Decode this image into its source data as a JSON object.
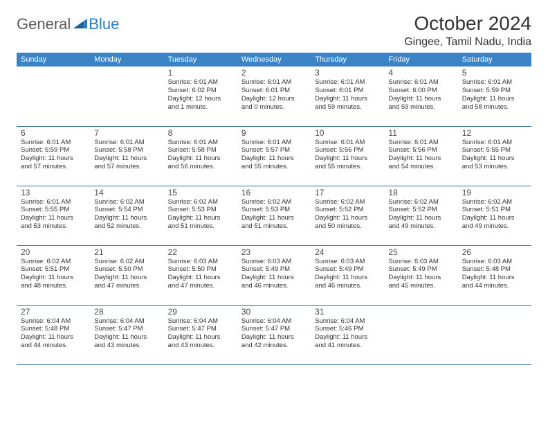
{
  "logo": {
    "part1": "General",
    "part2": "Blue"
  },
  "title": "October 2024",
  "location": "Gingee, Tamil Nadu, India",
  "colors": {
    "header_bg": "#3a84c5",
    "header_text": "#ffffff",
    "row_border": "#2f6fa6",
    "logo_gray": "#5a5a5a",
    "logo_blue": "#2b7bbf",
    "text": "#333333"
  },
  "weekdays": [
    "Sunday",
    "Monday",
    "Tuesday",
    "Wednesday",
    "Thursday",
    "Friday",
    "Saturday"
  ],
  "weeks": [
    [
      null,
      null,
      {
        "d": "1",
        "sr": "6:01 AM",
        "ss": "6:02 PM",
        "dl": "12 hours and 1 minute."
      },
      {
        "d": "2",
        "sr": "6:01 AM",
        "ss": "6:01 PM",
        "dl": "12 hours and 0 minutes."
      },
      {
        "d": "3",
        "sr": "6:01 AM",
        "ss": "6:01 PM",
        "dl": "11 hours and 59 minutes."
      },
      {
        "d": "4",
        "sr": "6:01 AM",
        "ss": "6:00 PM",
        "dl": "11 hours and 59 minutes."
      },
      {
        "d": "5",
        "sr": "6:01 AM",
        "ss": "5:59 PM",
        "dl": "11 hours and 58 minutes."
      }
    ],
    [
      {
        "d": "6",
        "sr": "6:01 AM",
        "ss": "5:59 PM",
        "dl": "11 hours and 57 minutes."
      },
      {
        "d": "7",
        "sr": "6:01 AM",
        "ss": "5:58 PM",
        "dl": "11 hours and 57 minutes."
      },
      {
        "d": "8",
        "sr": "6:01 AM",
        "ss": "5:58 PM",
        "dl": "11 hours and 56 minutes."
      },
      {
        "d": "9",
        "sr": "6:01 AM",
        "ss": "5:57 PM",
        "dl": "11 hours and 55 minutes."
      },
      {
        "d": "10",
        "sr": "6:01 AM",
        "ss": "5:56 PM",
        "dl": "11 hours and 55 minutes."
      },
      {
        "d": "11",
        "sr": "6:01 AM",
        "ss": "5:56 PM",
        "dl": "11 hours and 54 minutes."
      },
      {
        "d": "12",
        "sr": "6:01 AM",
        "ss": "5:55 PM",
        "dl": "11 hours and 53 minutes."
      }
    ],
    [
      {
        "d": "13",
        "sr": "6:01 AM",
        "ss": "5:55 PM",
        "dl": "11 hours and 53 minutes."
      },
      {
        "d": "14",
        "sr": "6:02 AM",
        "ss": "5:54 PM",
        "dl": "11 hours and 52 minutes."
      },
      {
        "d": "15",
        "sr": "6:02 AM",
        "ss": "5:53 PM",
        "dl": "11 hours and 51 minutes."
      },
      {
        "d": "16",
        "sr": "6:02 AM",
        "ss": "5:53 PM",
        "dl": "11 hours and 51 minutes."
      },
      {
        "d": "17",
        "sr": "6:02 AM",
        "ss": "5:52 PM",
        "dl": "11 hours and 50 minutes."
      },
      {
        "d": "18",
        "sr": "6:02 AM",
        "ss": "5:52 PM",
        "dl": "11 hours and 49 minutes."
      },
      {
        "d": "19",
        "sr": "6:02 AM",
        "ss": "5:51 PM",
        "dl": "11 hours and 49 minutes."
      }
    ],
    [
      {
        "d": "20",
        "sr": "6:02 AM",
        "ss": "5:51 PM",
        "dl": "11 hours and 48 minutes."
      },
      {
        "d": "21",
        "sr": "6:02 AM",
        "ss": "5:50 PM",
        "dl": "11 hours and 47 minutes."
      },
      {
        "d": "22",
        "sr": "6:03 AM",
        "ss": "5:50 PM",
        "dl": "11 hours and 47 minutes."
      },
      {
        "d": "23",
        "sr": "6:03 AM",
        "ss": "5:49 PM",
        "dl": "11 hours and 46 minutes."
      },
      {
        "d": "24",
        "sr": "6:03 AM",
        "ss": "5:49 PM",
        "dl": "11 hours and 46 minutes."
      },
      {
        "d": "25",
        "sr": "6:03 AM",
        "ss": "5:49 PM",
        "dl": "11 hours and 45 minutes."
      },
      {
        "d": "26",
        "sr": "6:03 AM",
        "ss": "5:48 PM",
        "dl": "11 hours and 44 minutes."
      }
    ],
    [
      {
        "d": "27",
        "sr": "6:04 AM",
        "ss": "5:48 PM",
        "dl": "11 hours and 44 minutes."
      },
      {
        "d": "28",
        "sr": "6:04 AM",
        "ss": "5:47 PM",
        "dl": "11 hours and 43 minutes."
      },
      {
        "d": "29",
        "sr": "6:04 AM",
        "ss": "5:47 PM",
        "dl": "11 hours and 43 minutes."
      },
      {
        "d": "30",
        "sr": "6:04 AM",
        "ss": "5:47 PM",
        "dl": "11 hours and 42 minutes."
      },
      {
        "d": "31",
        "sr": "6:04 AM",
        "ss": "5:46 PM",
        "dl": "11 hours and 41 minutes."
      },
      null,
      null
    ]
  ],
  "labels": {
    "sunrise": "Sunrise:",
    "sunset": "Sunset:",
    "daylight": "Daylight:"
  }
}
